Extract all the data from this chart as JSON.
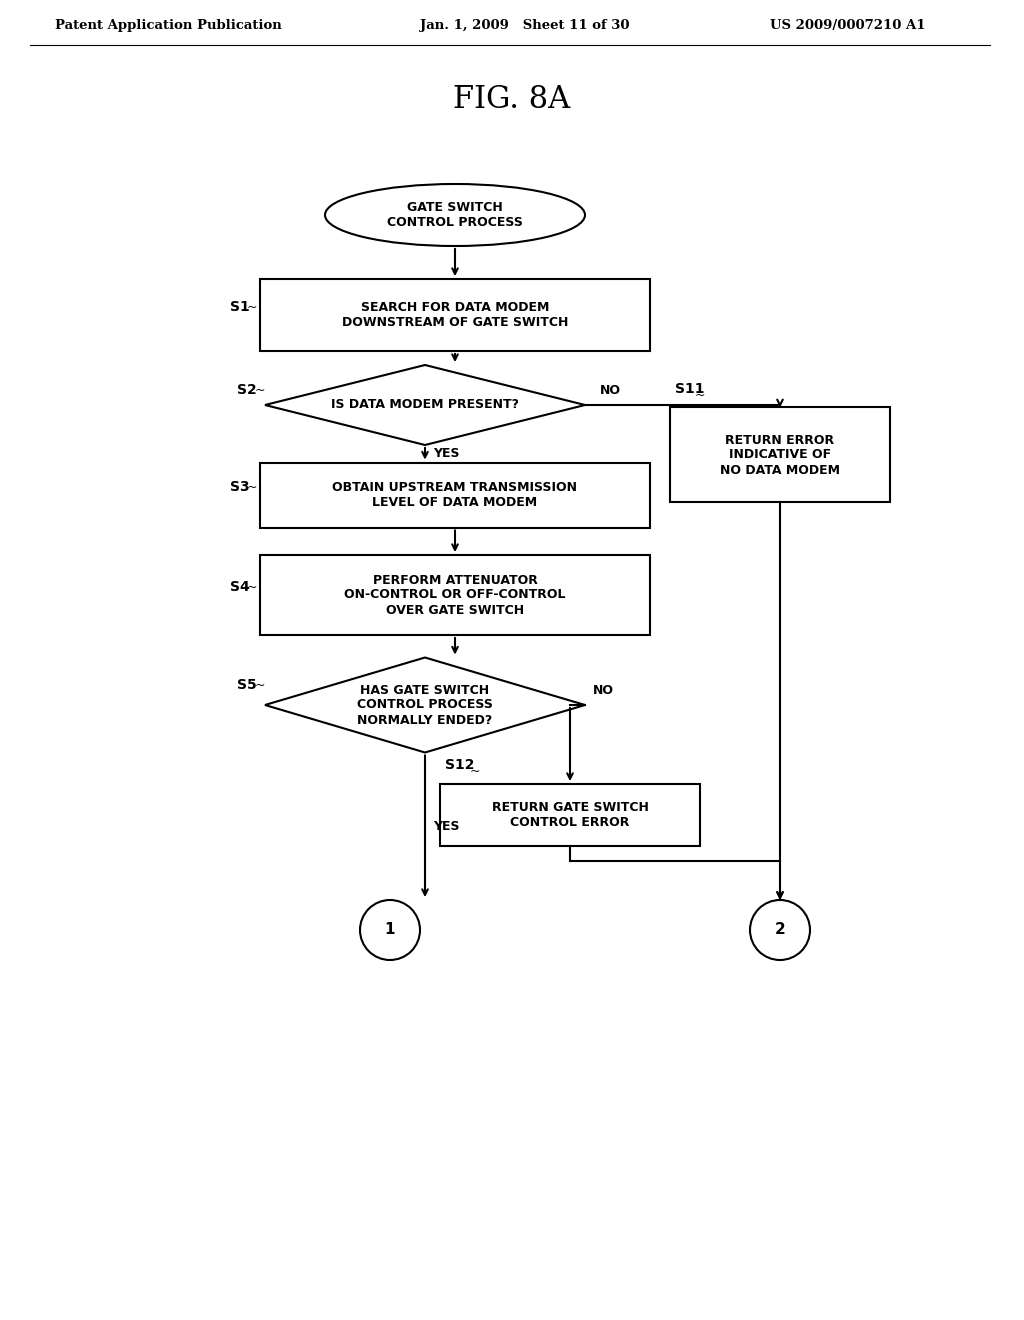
{
  "bg_color": "#ffffff",
  "title": "FIG. 8A",
  "header_left": "Patent Application Publication",
  "header_mid": "Jan. 1, 2009   Sheet 11 of 30",
  "header_right": "US 2009/0007210 A1",
  "fig_width": 10.24,
  "fig_height": 13.2,
  "dpi": 100
}
